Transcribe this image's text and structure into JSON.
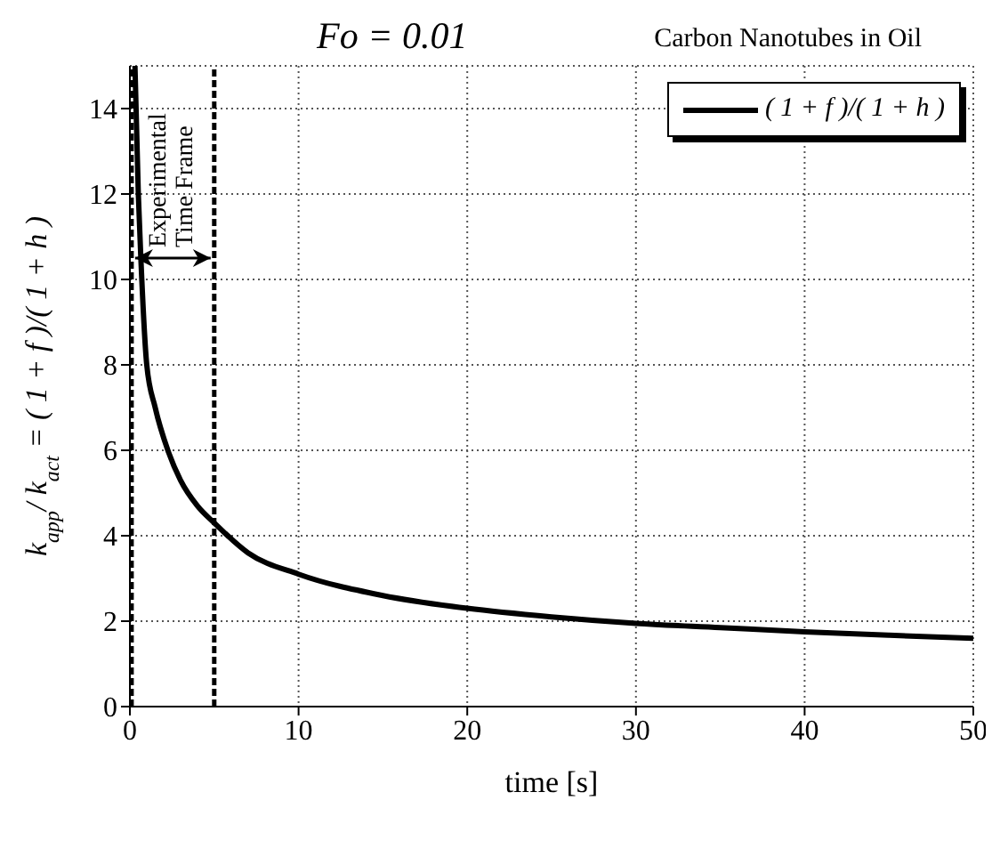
{
  "chart_data": {
    "type": "line",
    "title": "Fo = 0.01",
    "subtitle": "Carbon Nanotubes in Oil",
    "xlabel": "time [s]",
    "ylabel": "k$_{app}$/ k$_{act}$ = ( 1 + f )/( 1 + h )",
    "x": [
      0.3,
      0.5,
      0.65,
      1,
      1.5,
      2.25,
      3,
      4,
      5,
      7,
      10,
      15,
      20,
      25,
      30,
      35,
      40,
      45,
      50
    ],
    "series": [
      {
        "name": "( 1 + f )/( 1 + h )",
        "color": "#000000",
        "values": [
          15,
          12,
          10.5,
          8,
          7,
          6,
          5.3,
          4.7,
          4.3,
          3.6,
          3.1,
          2.6,
          2.3,
          2.1,
          1.95,
          1.85,
          1.75,
          1.67,
          1.6
        ]
      }
    ],
    "xlim": [
      0,
      50
    ],
    "xticks": [
      0,
      10,
      20,
      30,
      40,
      50
    ],
    "ylim": [
      0,
      15
    ],
    "yticks": [
      0,
      2,
      4,
      6,
      8,
      10,
      12,
      14
    ],
    "ref_lines": [
      {
        "axis": "x",
        "value": 0.1,
        "color": "#000000",
        "line_style": "dashed"
      },
      {
        "axis": "x",
        "value": 5,
        "color": "#000000",
        "line_style": "dashed"
      }
    ],
    "annotations": [
      {
        "text": "Experimental Time Frame",
        "x": 5,
        "y": 10.5
      }
    ],
    "grid": true,
    "legend": "top right",
    "line_style": "solid"
  }
}
